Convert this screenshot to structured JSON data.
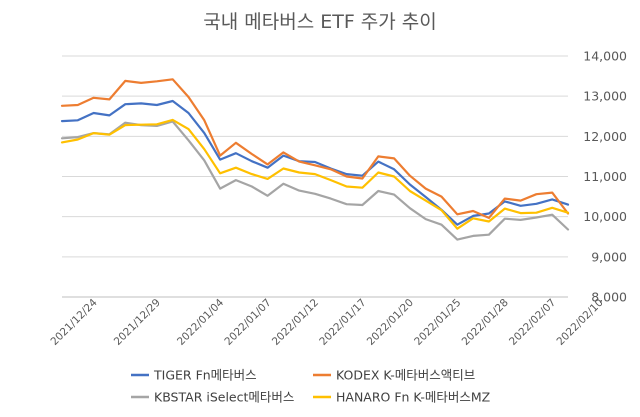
{
  "chart_data": {
    "type": "line",
    "title": "국내 메타버스 ETF 주가 추이",
    "xlabel": "",
    "ylabel": "",
    "ylim": [
      8000,
      14000
    ],
    "y_ticks": [
      "8,000",
      "9,000",
      "10,000",
      "11,000",
      "12,000",
      "13,000",
      "14,000"
    ],
    "grid": true,
    "legend_position": "bottom",
    "x_tick_labels": [
      "2021/12/24",
      "2021/12/29",
      "2022/01/04",
      "2022/01/07",
      "2022/01/12",
      "2022/01/17",
      "2022/01/20",
      "2022/01/25",
      "2022/01/28",
      "2022/02/07",
      "2022/02/10"
    ],
    "x_tick_indices": [
      2,
      6,
      10,
      13,
      16,
      19,
      22,
      25,
      28,
      31,
      34
    ],
    "series": [
      {
        "name": "TIGER Fn메타버스",
        "color": "#4472C4",
        "values": [
          12380,
          12400,
          12580,
          12520,
          12800,
          12820,
          12780,
          12880,
          12580,
          12080,
          11420,
          11580,
          11380,
          11220,
          11520,
          11380,
          11360,
          11200,
          11060,
          11020,
          11370,
          11180,
          10800,
          10490,
          10170,
          9800,
          10020,
          10080,
          10380,
          10270,
          10320,
          10430,
          10300
        ]
      },
      {
        "name": "KODEX K-메타버스액티브",
        "color": "#ED7D31",
        "values": [
          12760,
          12780,
          12960,
          12920,
          13380,
          13330,
          13370,
          13420,
          12980,
          12400,
          11520,
          11840,
          11560,
          11300,
          11600,
          11370,
          11280,
          11180,
          11000,
          10950,
          11500,
          11450,
          11020,
          10700,
          10500,
          10060,
          10140,
          9970,
          10450,
          10400,
          10560,
          10600,
          10080
        ]
      },
      {
        "name": "KBSTAR iSelect메타버스",
        "color": "#A5A5A5",
        "values": [
          11950,
          11980,
          12080,
          12050,
          12340,
          12280,
          12260,
          12370,
          11900,
          11400,
          10700,
          10910,
          10750,
          10520,
          10820,
          10650,
          10570,
          10450,
          10310,
          10290,
          10640,
          10550,
          10210,
          9940,
          9800,
          9430,
          9520,
          9550,
          9950,
          9920,
          9980,
          10050,
          9680
        ]
      },
      {
        "name": "HANARO Fn K-메타버스MZ",
        "color": "#FFC000",
        "values": [
          11850,
          11920,
          12080,
          12040,
          12280,
          12290,
          12300,
          12410,
          12180,
          11680,
          11080,
          11220,
          11060,
          10940,
          11200,
          11100,
          11060,
          10910,
          10750,
          10720,
          11100,
          11000,
          10640,
          10400,
          10160,
          9700,
          9960,
          9880,
          10200,
          10090,
          10100,
          10220,
          10100
        ]
      }
    ]
  }
}
